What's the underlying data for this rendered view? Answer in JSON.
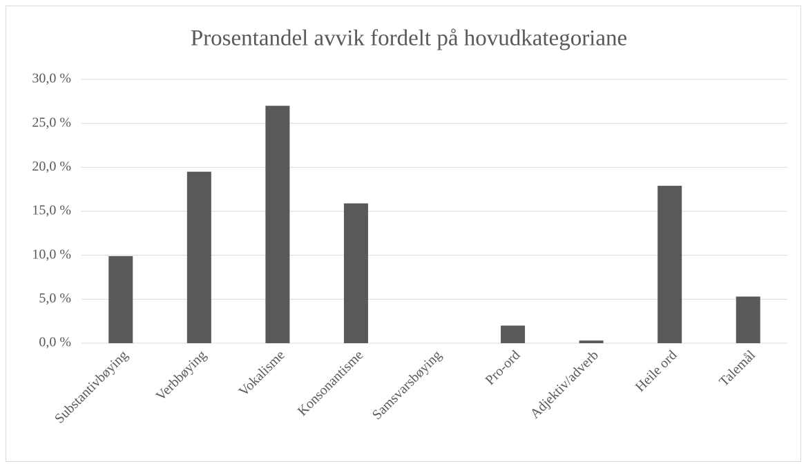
{
  "chart_data": {
    "type": "bar",
    "title": "Prosentandel avvik fordelt på hovudkategoriane",
    "categories": [
      "Substantivbøying",
      "Verbbøying",
      "Vokalisme",
      "Konsonantisme",
      "Samsvarsbøying",
      "Pro-ord",
      "Adjektiv/adverb",
      "Heile ord",
      "Talemål"
    ],
    "values": [
      9.9,
      19.5,
      27.0,
      15.9,
      0,
      2.0,
      0.3,
      17.9,
      5.3
    ],
    "color": "#595959",
    "ylim": [
      0,
      30
    ],
    "yticks": [
      {
        "value": 0,
        "label": "0,0 %"
      },
      {
        "value": 5,
        "label": "5,0 %"
      },
      {
        "value": 10,
        "label": "10,0 %"
      },
      {
        "value": 15,
        "label": "15,0 %"
      },
      {
        "value": 20,
        "label": "20,0 %"
      },
      {
        "value": 25,
        "label": "25,0 %"
      },
      {
        "value": 30,
        "label": "30,0 %"
      }
    ],
    "grid": true
  }
}
